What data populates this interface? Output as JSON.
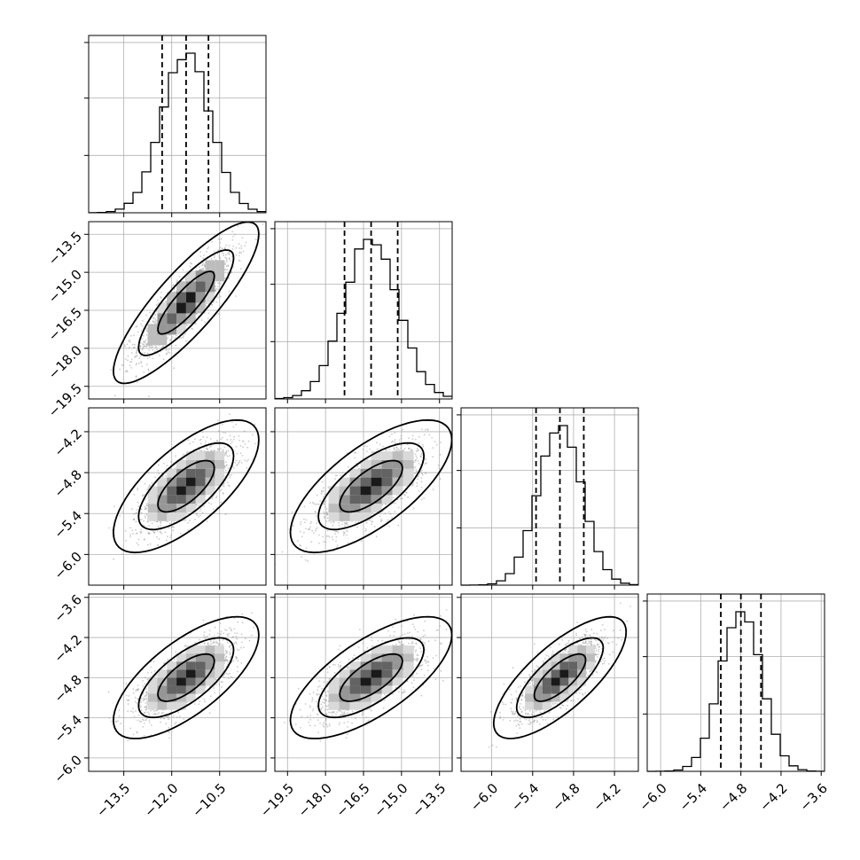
{
  "chart_data": {
    "type": "corner",
    "parameters": [
      {
        "mean": -11.55,
        "sd": 0.75,
        "q16": -12.3,
        "q50": -11.55,
        "q84": -10.85,
        "range": [
          -14.6,
          -9.05
        ],
        "ticks": [
          -13.5,
          -12.0,
          -10.5
        ],
        "tick_labels": [
          "−13.5",
          "−12.0",
          "−10.5"
        ]
      },
      {
        "mean": -16.2,
        "sd": 1.05,
        "q16": -17.25,
        "q50": -16.2,
        "q84": -15.15,
        "range": [
          -20.0,
          -13.0
        ],
        "ticks": [
          -19.5,
          -18.0,
          -16.5,
          -15.0,
          -13.5
        ],
        "tick_labels": [
          "−19.5",
          "−18.0",
          "−16.5",
          "−15.0",
          "−13.5"
        ]
      },
      {
        "mean": -5.0,
        "sd": 0.32,
        "q16": -5.35,
        "q50": -5.0,
        "q84": -4.65,
        "range": [
          -6.45,
          -3.85
        ],
        "ticks": [
          -6.0,
          -5.4,
          -4.8,
          -4.2
        ],
        "tick_labels": [
          "−6.0",
          "−5.4",
          "−4.8",
          "−4.2"
        ]
      },
      {
        "mean": -4.8,
        "sd": 0.3,
        "q16": -5.1,
        "q50": -4.8,
        "q84": -4.5,
        "range": [
          -6.2,
          -3.55
        ],
        "ticks": [
          -6.0,
          -5.4,
          -4.8,
          -4.2,
          -3.6
        ],
        "tick_labels": [
          "−6.0",
          "−5.4",
          "−4.8",
          "−4.2",
          "−3.6"
        ]
      }
    ],
    "correlations": [
      [
        1,
        0.85,
        0.7,
        0.7
      ],
      [
        0.85,
        1,
        0.7,
        0.7
      ],
      [
        0.7,
        0.7,
        1,
        0.75
      ],
      [
        0.7,
        0.7,
        0.75,
        1
      ]
    ],
    "quantiles": [
      0.16,
      0.5,
      0.84
    ],
    "contour_levels": [
      0.5,
      0.86,
      0.99
    ],
    "grid": true,
    "colors": {
      "line": "#000000",
      "grid": "#b0b0b0",
      "points": "#9a9a9a"
    }
  }
}
